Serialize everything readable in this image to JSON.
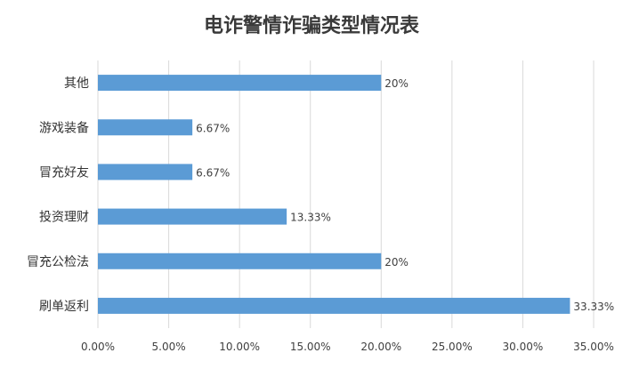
{
  "chart_data": {
    "type": "bar",
    "orientation": "horizontal",
    "title": "电诈警情诈骗类型情况表",
    "categories": [
      "刷单返利",
      "冒充公检法",
      "投资理财",
      "冒充好友",
      "游戏装备",
      "其他"
    ],
    "values": [
      33.33,
      20,
      13.33,
      6.67,
      6.67,
      20
    ],
    "data_labels": [
      "33.33%",
      "20%",
      "13.33%",
      "6.67%",
      "6.67%",
      "20%"
    ],
    "x_ticks": [
      "0.00%",
      "5.00%",
      "10.00%",
      "15.00%",
      "20.00%",
      "25.00%",
      "30.00%",
      "35.00%"
    ],
    "xlim": [
      0,
      35
    ],
    "grid": true,
    "bar_color": "#5b9bd5"
  }
}
